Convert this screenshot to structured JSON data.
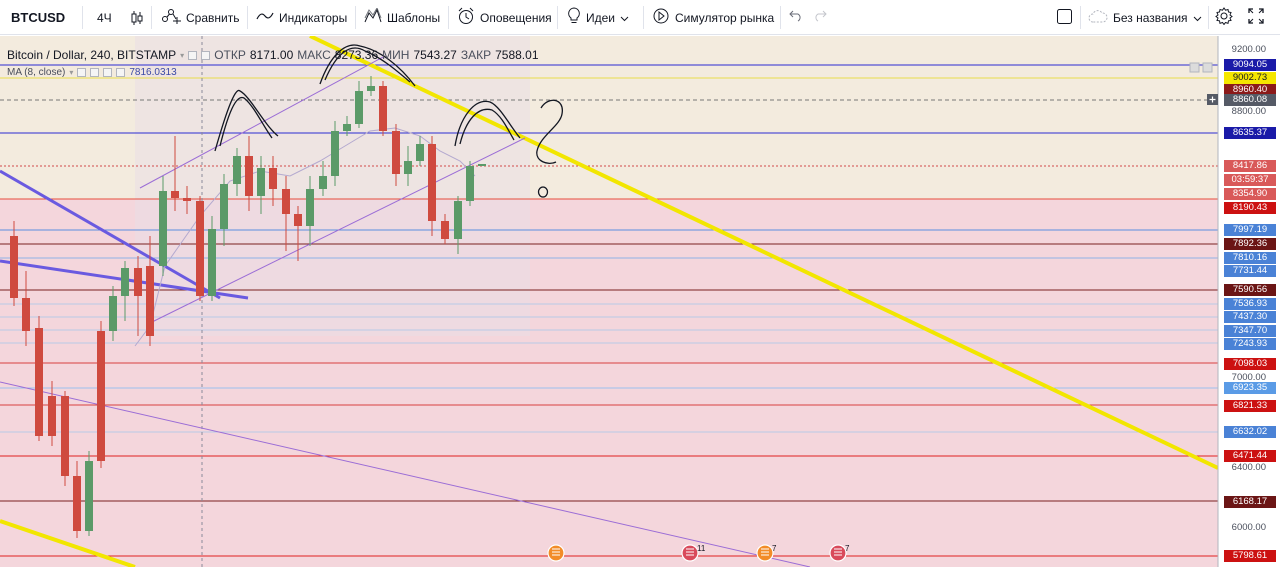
{
  "toolbar": {
    "symbol": "BTCUSD",
    "interval": "4Ч",
    "compare_label": "Сравнить",
    "indicators_label": "Индикаторы",
    "templates_label": "Шаблоны",
    "alerts_label": "Оповещения",
    "ideas_label": "Идеи",
    "simulator_label": "Симулятор рынка",
    "layout_name": "Без названия"
  },
  "legend": {
    "title": "Bitcoin / Dollar, 240, BITSTAMP",
    "open_label": "ОТКР",
    "open_value": "8171.00",
    "high_label": "МАКС",
    "high_value": "8273.36",
    "low_label": "МИН",
    "low_value": "7543.27",
    "close_label": "ЗАКР",
    "close_value": "7588.01",
    "ma_label": "MA (8, close)",
    "ma_value": "7816.0313"
  },
  "price_axis": {
    "ticks": [
      "9200.00",
      "8800.00",
      "7000.00",
      "6400.00",
      "6000.00"
    ],
    "labels": [
      {
        "text": "9094.05",
        "color": "#1a1aa8"
      },
      {
        "text": "9002.73",
        "color": "#f5e600",
        "text_color": "#131722"
      },
      {
        "text": "8960.40",
        "color": "#8b1a1a"
      },
      {
        "text": "8860.08",
        "color": "#555a66"
      },
      {
        "text": "8635.37",
        "color": "#1a1aa8"
      },
      {
        "text": "8417.86",
        "color": "#d95959"
      },
      {
        "text": "03:59:37",
        "color": "#d95959"
      },
      {
        "text": "8354.90",
        "color": "#d95959"
      },
      {
        "text": "8190.43",
        "color": "#cc1111"
      },
      {
        "text": "7997.19",
        "color": "#4a82d6"
      },
      {
        "text": "7892.36",
        "color": "#6b1515"
      },
      {
        "text": "7810.16",
        "color": "#4a82d6"
      },
      {
        "text": "7731.44",
        "color": "#4a82d6"
      },
      {
        "text": "7590.56",
        "color": "#6b1515"
      },
      {
        "text": "7536.93",
        "color": "#4a82d6"
      },
      {
        "text": "7437.30",
        "color": "#4a82d6"
      },
      {
        "text": "7347.70",
        "color": "#4a82d6"
      },
      {
        "text": "7243.93",
        "color": "#4a82d6"
      },
      {
        "text": "7098.03",
        "color": "#cc1111"
      },
      {
        "text": "6923.35",
        "color": "#5a9be6"
      },
      {
        "text": "6821.33",
        "color": "#cc1111"
      },
      {
        "text": "6632.02",
        "color": "#4a82d6"
      },
      {
        "text": "6471.44",
        "color": "#cc1111"
      },
      {
        "text": "6168.17",
        "color": "#6b1515"
      },
      {
        "text": "5798.61",
        "color": "#cc1111"
      }
    ]
  },
  "events": [
    {
      "badge": ""
    },
    {
      "badge": "11"
    },
    {
      "badge": "7"
    },
    {
      "badge": "7"
    }
  ],
  "annotations": {
    "question_mark": "?",
    "small_o": "o"
  }
}
